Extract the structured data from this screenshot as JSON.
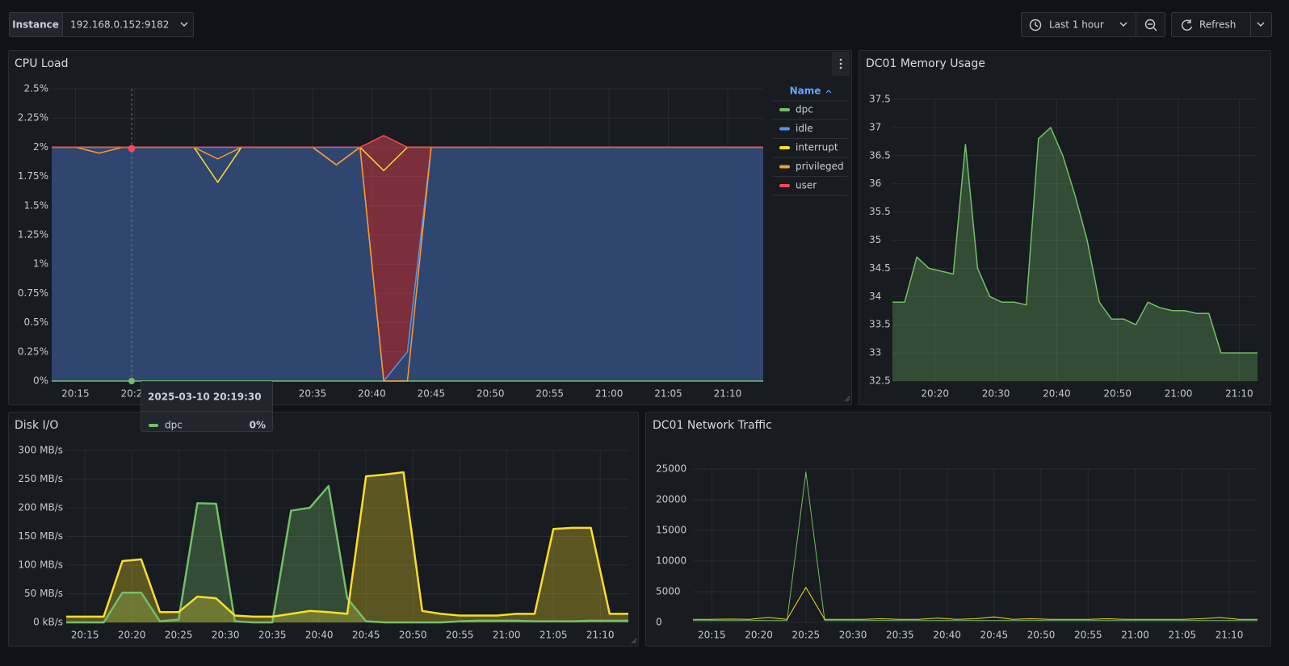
{
  "toolbar": {
    "instance_label": "Instance",
    "instance_value": "192.168.0.152:9182",
    "time_range": "Last 1 hour",
    "refresh": "Refresh"
  },
  "tooltip": {
    "time": "2025-03-10 20:19:30",
    "value": "0%"
  },
  "chart_data": [
    {
      "type": "line",
      "title": "CPU Load",
      "legend_title": "Name",
      "x": [
        "20:13",
        "20:15",
        "20:17",
        "20:19",
        "20:21",
        "20:23",
        "20:25",
        "20:27",
        "20:29",
        "20:31",
        "20:33",
        "20:35",
        "20:37",
        "20:39",
        "20:41",
        "20:43",
        "20:45",
        "20:47",
        "20:49",
        "20:51",
        "20:53",
        "20:55",
        "20:57",
        "20:59",
        "21:01",
        "21:03",
        "21:05",
        "21:07",
        "21:09",
        "21:11",
        "21:13"
      ],
      "xlim": [
        "20:13",
        "21:13"
      ],
      "xticks": [
        "20:15",
        "20:20",
        "20:25",
        "20:30",
        "20:35",
        "20:40",
        "20:45",
        "20:50",
        "20:55",
        "21:00",
        "21:05",
        "21:10"
      ],
      "ylim": [
        0,
        2.5
      ],
      "yticks": [
        {
          "value": 0,
          "label": "0%"
        },
        {
          "value": 0.25,
          "label": "0.25%"
        },
        {
          "value": 0.5,
          "label": "0.5%"
        },
        {
          "value": 0.75,
          "label": "0.75%"
        },
        {
          "value": 1,
          "label": "1%"
        },
        {
          "value": 1.25,
          "label": "1.25%"
        },
        {
          "value": 1.5,
          "label": "1.5%"
        },
        {
          "value": 1.75,
          "label": "1.75%"
        },
        {
          "value": 2,
          "label": "2%"
        },
        {
          "value": 2.25,
          "label": "2.25%"
        },
        {
          "value": 2.5,
          "label": "2.5%"
        }
      ],
      "grid": true,
      "series": [
        {
          "name": "dpc",
          "color": "#73bf69",
          "values": [
            0,
            0,
            0,
            0,
            0,
            0,
            0,
            0,
            0,
            0,
            0,
            0,
            0,
            0,
            0,
            0,
            0,
            0,
            0,
            0,
            0,
            0,
            0,
            0,
            0,
            0,
            0,
            0,
            0,
            0,
            0
          ]
        },
        {
          "name": "idle",
          "color": "#5794f2",
          "values": [
            2,
            2,
            2,
            2,
            2,
            2,
            2,
            2,
            2,
            2,
            2,
            2,
            2,
            2,
            0,
            0.25,
            2,
            2,
            2,
            2,
            2,
            2,
            2,
            2,
            2,
            2,
            2,
            2,
            2,
            2,
            2
          ]
        },
        {
          "name": "interrupt",
          "color": "#fade2a",
          "values": [
            2,
            2,
            2,
            2,
            2,
            2,
            2,
            1.7,
            2,
            2,
            2,
            2,
            1.85,
            2,
            1.8,
            2,
            2,
            2,
            2,
            2,
            2,
            2,
            2,
            2,
            2,
            2,
            2,
            2,
            2,
            2,
            2
          ]
        },
        {
          "name": "privileged",
          "color": "#ff9830",
          "values": [
            2,
            2,
            1.95,
            2,
            2,
            2,
            2,
            1.9,
            2,
            2,
            2,
            2,
            1.85,
            2,
            0,
            0,
            2,
            2,
            2,
            2,
            2,
            2,
            2,
            2,
            2,
            2,
            2,
            2,
            2,
            2,
            2
          ]
        },
        {
          "name": "user",
          "color": "#f2495c",
          "values": [
            2,
            2,
            2,
            2,
            2,
            2,
            2,
            2,
            2,
            2,
            2,
            2,
            2,
            2,
            2.1,
            2,
            2,
            2,
            2,
            2,
            2,
            2,
            2,
            2,
            2,
            2,
            2,
            2,
            2,
            2,
            2
          ]
        }
      ]
    },
    {
      "type": "line",
      "title": "DC01 Memory Usage",
      "x": [
        "20:13",
        "20:15",
        "20:17",
        "20:19",
        "20:21",
        "20:23",
        "20:25",
        "20:27",
        "20:29",
        "20:31",
        "20:33",
        "20:35",
        "20:37",
        "20:39",
        "20:41",
        "20:43",
        "20:45",
        "20:47",
        "20:49",
        "20:51",
        "20:53",
        "20:55",
        "20:57",
        "20:59",
        "21:01",
        "21:03",
        "21:05",
        "21:07",
        "21:09",
        "21:11",
        "21:13"
      ],
      "xlim": [
        "20:13",
        "21:13"
      ],
      "xticks": [
        "20:20",
        "20:30",
        "20:40",
        "20:50",
        "21:00",
        "21:10"
      ],
      "ylim": [
        32.5,
        37.5
      ],
      "yticks": [
        32.5,
        33,
        33.5,
        34,
        34.5,
        35,
        35.5,
        36,
        36.5,
        37,
        37.5
      ],
      "grid": true,
      "series": [
        {
          "color": "#73bf69",
          "values": [
            33.9,
            33.9,
            34.7,
            34.5,
            34.45,
            34.4,
            36.7,
            34.5,
            34.0,
            33.9,
            33.9,
            33.85,
            36.8,
            37.0,
            36.5,
            35.8,
            35.0,
            33.9,
            33.6,
            33.6,
            33.5,
            33.9,
            33.8,
            33.75,
            33.75,
            33.7,
            33.7,
            33.0,
            33.0,
            33.0,
            33.0
          ]
        }
      ]
    },
    {
      "type": "line",
      "title": "Disk I/O",
      "x": [
        "20:13",
        "20:15",
        "20:17",
        "20:19",
        "20:21",
        "20:23",
        "20:25",
        "20:27",
        "20:29",
        "20:31",
        "20:33",
        "20:35",
        "20:37",
        "20:39",
        "20:41",
        "20:43",
        "20:45",
        "20:47",
        "20:49",
        "20:51",
        "20:53",
        "20:55",
        "20:57",
        "20:59",
        "21:01",
        "21:03",
        "21:05",
        "21:07",
        "21:09",
        "21:11",
        "21:13"
      ],
      "xlim": [
        "20:13",
        "21:13"
      ],
      "xticks": [
        "20:15",
        "20:20",
        "20:25",
        "20:30",
        "20:35",
        "20:40",
        "20:45",
        "20:50",
        "20:55",
        "21:00",
        "21:05",
        "21:10"
      ],
      "ylim": [
        0,
        300
      ],
      "yticks": [
        {
          "value": 0,
          "label": "0 kB/s"
        },
        {
          "value": 50,
          "label": "50 MB/s"
        },
        {
          "value": 100,
          "label": "100 MB/s"
        },
        {
          "value": 150,
          "label": "150 MB/s"
        },
        {
          "value": 200,
          "label": "200 MB/s"
        },
        {
          "value": 250,
          "label": "250 MB/s"
        },
        {
          "value": 300,
          "label": "300 MB/s"
        }
      ],
      "grid": true,
      "series": [
        {
          "color": "#73bf69",
          "values": [
            0,
            0,
            0,
            52,
            52,
            2,
            5,
            208,
            207,
            2,
            0,
            0,
            195,
            200,
            238,
            42,
            2,
            0,
            0,
            0,
            0,
            2,
            3,
            3,
            3,
            2,
            2,
            2,
            3,
            3,
            3
          ]
        },
        {
          "color": "#fade2a",
          "values": [
            10,
            10,
            10,
            107,
            110,
            18,
            18,
            45,
            42,
            12,
            10,
            10,
            15,
            20,
            18,
            15,
            255,
            258,
            262,
            20,
            15,
            12,
            12,
            12,
            15,
            15,
            163,
            165,
            165,
            15,
            15
          ]
        }
      ]
    },
    {
      "type": "line",
      "title": "DC01 Network Traffic",
      "x": [
        "20:13",
        "20:15",
        "20:17",
        "20:19",
        "20:21",
        "20:23",
        "20:25",
        "20:27",
        "20:29",
        "20:31",
        "20:33",
        "20:35",
        "20:37",
        "20:39",
        "20:41",
        "20:43",
        "20:45",
        "20:47",
        "20:49",
        "20:51",
        "20:53",
        "20:55",
        "20:57",
        "20:59",
        "21:01",
        "21:03",
        "21:05",
        "21:07",
        "21:09",
        "21:11",
        "21:13"
      ],
      "xlim": [
        "20:13",
        "21:13"
      ],
      "xticks": [
        "20:15",
        "20:20",
        "20:25",
        "20:30",
        "20:35",
        "20:40",
        "20:45",
        "20:50",
        "20:55",
        "21:00",
        "21:05",
        "21:10"
      ],
      "ylim": [
        0,
        25000
      ],
      "yticks": [
        0,
        5000,
        10000,
        15000,
        20000,
        25000
      ],
      "grid": true,
      "series": [
        {
          "color": "#73bf69",
          "values": [
            300,
            300,
            300,
            300,
            300,
            300,
            24500,
            300,
            300,
            300,
            300,
            300,
            300,
            300,
            300,
            300,
            300,
            300,
            300,
            300,
            300,
            300,
            300,
            300,
            300,
            300,
            300,
            300,
            300,
            300,
            300
          ]
        },
        {
          "color": "#fade2a",
          "values": [
            500,
            500,
            550,
            500,
            800,
            500,
            5700,
            500,
            500,
            500,
            600,
            500,
            500,
            700,
            500,
            600,
            900,
            500,
            600,
            500,
            500,
            500,
            600,
            500,
            500,
            500,
            500,
            600,
            800,
            500,
            500
          ]
        }
      ]
    }
  ]
}
